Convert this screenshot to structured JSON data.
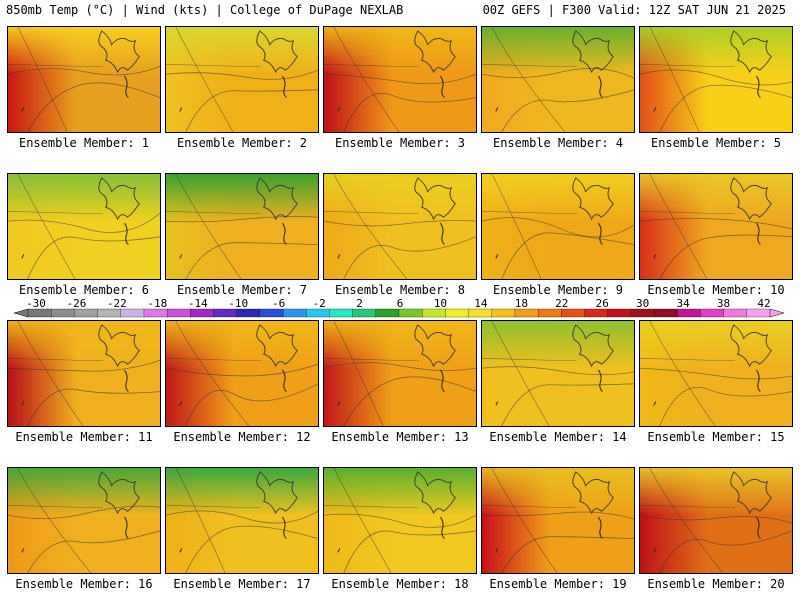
{
  "header": {
    "left": "850mb Temp (°C) | Wind (kts) | College of DuPage NEXLAB",
    "right": "00Z GEFS | F300 Valid: 12Z SAT JUN 21 2025"
  },
  "panels": [
    {
      "label": "Ensemble Member: 1",
      "base": "#e8a020",
      "west": "#c81810",
      "north": "#f8d020"
    },
    {
      "label": "Ensemble Member: 2",
      "base": "#f0b018",
      "west": "#f0c020",
      "north": "#d8d830"
    },
    {
      "label": "Ensemble Member: 3",
      "base": "#f09818",
      "west": "#c01018",
      "north": "#f0b818"
    },
    {
      "label": "Ensemble Member: 4",
      "base": "#f0b820",
      "west": "#f0a820",
      "north": "#60b030"
    },
    {
      "label": "Ensemble Member: 5",
      "base": "#f8d018",
      "west": "#e05018",
      "north": "#a8d028"
    },
    {
      "label": "Ensemble Member: 6",
      "base": "#f0d020",
      "west": "#f0c820",
      "north": "#80c038"
    },
    {
      "label": "Ensemble Member: 7",
      "base": "#f0b020",
      "west": "#e8c020",
      "north": "#30a030"
    },
    {
      "label": "Ensemble Member: 8",
      "base": "#f0c020",
      "west": "#f0a818",
      "north": "#e8d020"
    },
    {
      "label": "Ensemble Member: 9",
      "base": "#f0a818",
      "west": "#f0b018",
      "north": "#f0d020"
    },
    {
      "label": "Ensemble Member: 10",
      "base": "#f0a820",
      "west": "#d83018",
      "north": "#e8c828"
    },
    {
      "label": "Ensemble Member: 11",
      "base": "#f0b020",
      "west": "#b81018",
      "north": "#f0b818"
    },
    {
      "label": "Ensemble Member: 12",
      "base": "#f0a018",
      "west": "#c01818",
      "north": "#f0b818"
    },
    {
      "label": "Ensemble Member: 13",
      "base": "#f0a018",
      "west": "#c01818",
      "north": "#f0b818"
    },
    {
      "label": "Ensemble Member: 14",
      "base": "#f0c020",
      "west": "#f0c020",
      "north": "#88c030"
    },
    {
      "label": "Ensemble Member: 15",
      "base": "#f0b020",
      "west": "#f0b818",
      "north": "#e8d020"
    },
    {
      "label": "Ensemble Member: 16",
      "base": "#f0b020",
      "west": "#f09818",
      "north": "#40a838"
    },
    {
      "label": "Ensemble Member: 17",
      "base": "#f0c020",
      "west": "#f0b018",
      "north": "#30a840"
    },
    {
      "label": "Ensemble Member: 18",
      "base": "#f0c820",
      "west": "#f0b818",
      "north": "#50b030"
    },
    {
      "label": "Ensemble Member: 19",
      "base": "#f0a018",
      "west": "#c81018",
      "north": "#e8c020"
    },
    {
      "label": "Ensemble Member: 20",
      "base": "#e07018",
      "west": "#c01018",
      "north": "#e8c828"
    }
  ],
  "colorbar": {
    "ticks": [
      "-30",
      "-26",
      "-22",
      "-18",
      "-14",
      "-10",
      "-6",
      "-2",
      "2",
      "6",
      "10",
      "14",
      "18",
      "22",
      "26",
      "30",
      "34",
      "38",
      "42"
    ],
    "colors": [
      "#787878",
      "#8c8c8c",
      "#a0a0a0",
      "#b4b4b4",
      "#c8b4e6",
      "#dc78e6",
      "#c850dc",
      "#a028c8",
      "#6428c8",
      "#2828b4",
      "#2850dc",
      "#2896f0",
      "#28c8f0",
      "#28e6c8",
      "#28c878",
      "#28a028",
      "#78c828",
      "#c8e628",
      "#f0f028",
      "#f8e028",
      "#f8c018",
      "#f0a018",
      "#f07818",
      "#e85018",
      "#d82818",
      "#c01018",
      "#a01018",
      "#900c28",
      "#c01896",
      "#e040c8",
      "#f078e0",
      "#f8a0f0"
    ]
  }
}
